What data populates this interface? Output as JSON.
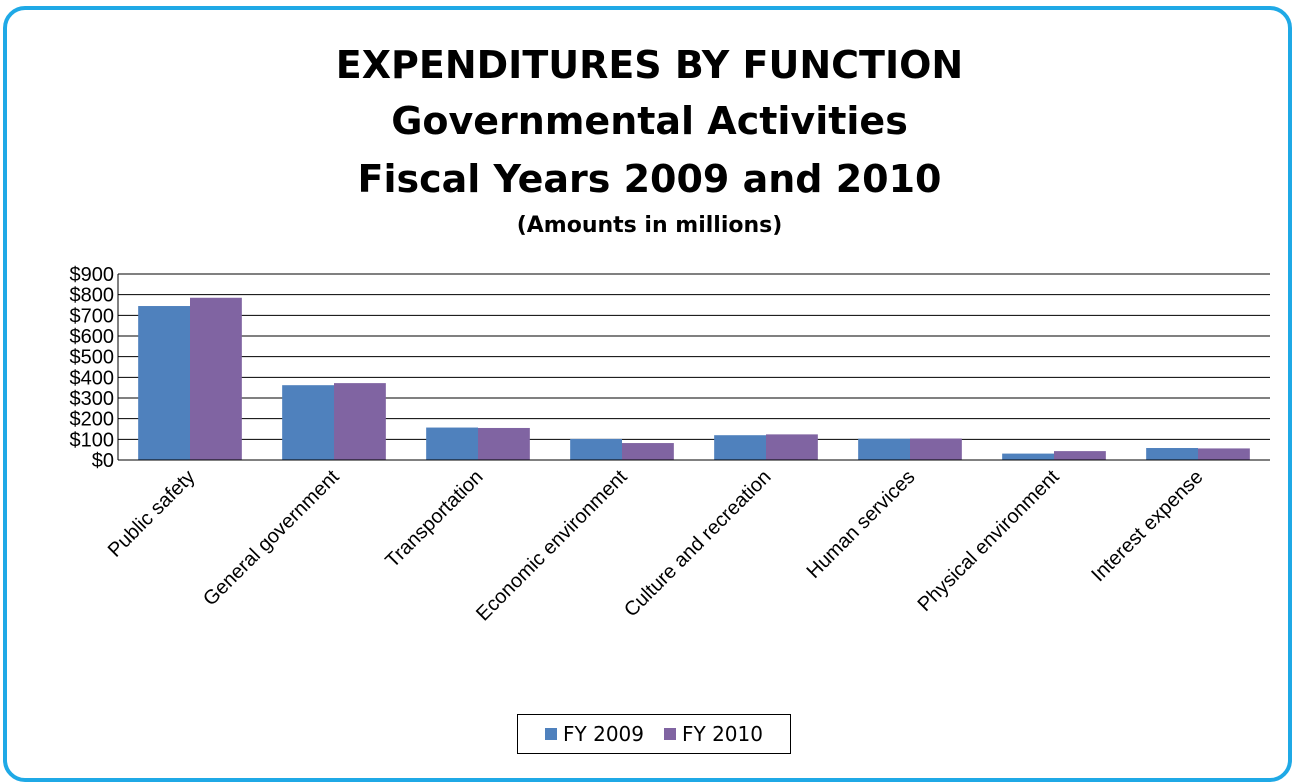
{
  "title_lines": [
    "EXPENDITURES BY FUNCTION",
    "Governmental Activities",
    "Fiscal  Years 2009 and 2010",
    "(Amounts in millions)"
  ],
  "colors": {
    "frame": "#1FA9E6",
    "fy2009": "#4F81BD",
    "fy2010": "#8064A2"
  },
  "legend": {
    "fy2009": "FY 2009",
    "fy2010": "FY 2010"
  },
  "chart_data": {
    "type": "bar",
    "title": "EXPENDITURES BY FUNCTION Governmental Activities Fiscal  Years 2009 and 2010",
    "subtitle": "(Amounts in millions)",
    "categories": [
      "Public safety",
      "General government",
      "Transportation",
      "Economic environment",
      "Culture and recreation",
      "Human services",
      "Physical environment",
      "Interest expense"
    ],
    "series": [
      {
        "name": "FY 2009",
        "values": [
          745,
          362,
          157,
          102,
          120,
          103,
          31,
          58
        ]
      },
      {
        "name": "FY 2010",
        "values": [
          785,
          372,
          155,
          82,
          124,
          104,
          43,
          56
        ]
      }
    ],
    "yticks": [
      "$0",
      "$100",
      "$200",
      "$300",
      "$400",
      "$500",
      "$600",
      "$700",
      "$800",
      "$900"
    ],
    "ylim": [
      0,
      900
    ],
    "grid": true,
    "legend_position": "bottom"
  }
}
